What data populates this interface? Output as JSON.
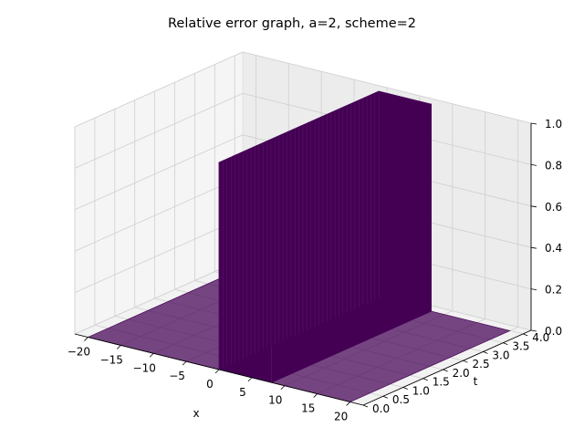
{
  "chart_data": {
    "type": "surface3d",
    "title": "Relative error graph, a=2, scheme=2",
    "xlabel": "x",
    "ylabel": "t",
    "zlabel": "",
    "xlim": [
      -22,
      22
    ],
    "ylim": [
      0,
      4.2
    ],
    "zlim": [
      0,
      1
    ],
    "x_ticks": [
      -20,
      -15,
      -10,
      -5,
      0,
      5,
      10,
      15,
      20
    ],
    "y_ticks": [
      0.0,
      0.5,
      1.0,
      1.5,
      2.0,
      2.5,
      3.0,
      3.5,
      4.0
    ],
    "z_ticks": [
      0.0,
      0.2,
      0.4,
      0.6,
      0.8,
      1.0
    ],
    "surface_color": "#440154",
    "grid": true,
    "surface": {
      "x_range": [
        -20,
        20
      ],
      "t_range": [
        0,
        4
      ],
      "description_values": {
        "error_front_left_at_t0": 0,
        "error_front_right_at_t0": 8,
        "error_front_left_at_t4": 0,
        "error_front_right_at_t4": 8,
        "max_error": 1.0,
        "base_error": 0.0
      }
    }
  }
}
